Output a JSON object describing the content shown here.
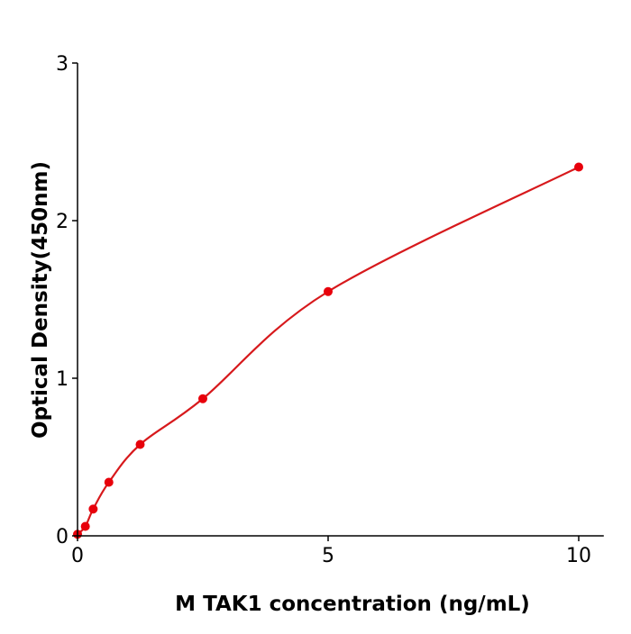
{
  "chart_data": {
    "type": "scatter",
    "title": "",
    "xlabel": "M  TAK1 concentration (ng/mL)",
    "ylabel": "Optical Density(450nm)",
    "xlim": [
      0,
      10.5
    ],
    "ylim": [
      0,
      3
    ],
    "xticks": [
      0,
      5,
      10
    ],
    "yticks": [
      0,
      1,
      2,
      3
    ],
    "grid": false,
    "colors": {
      "points": "#e8000b",
      "curve": "#d7191c"
    },
    "series": [
      {
        "x": [
          0,
          0.156,
          0.3125,
          0.625,
          1.25,
          2.5,
          5,
          10
        ],
        "y": [
          0.01,
          0.06,
          0.17,
          0.34,
          0.58,
          0.87,
          1.55,
          2.34
        ]
      }
    ],
    "fit": "smooth curve through standards"
  }
}
